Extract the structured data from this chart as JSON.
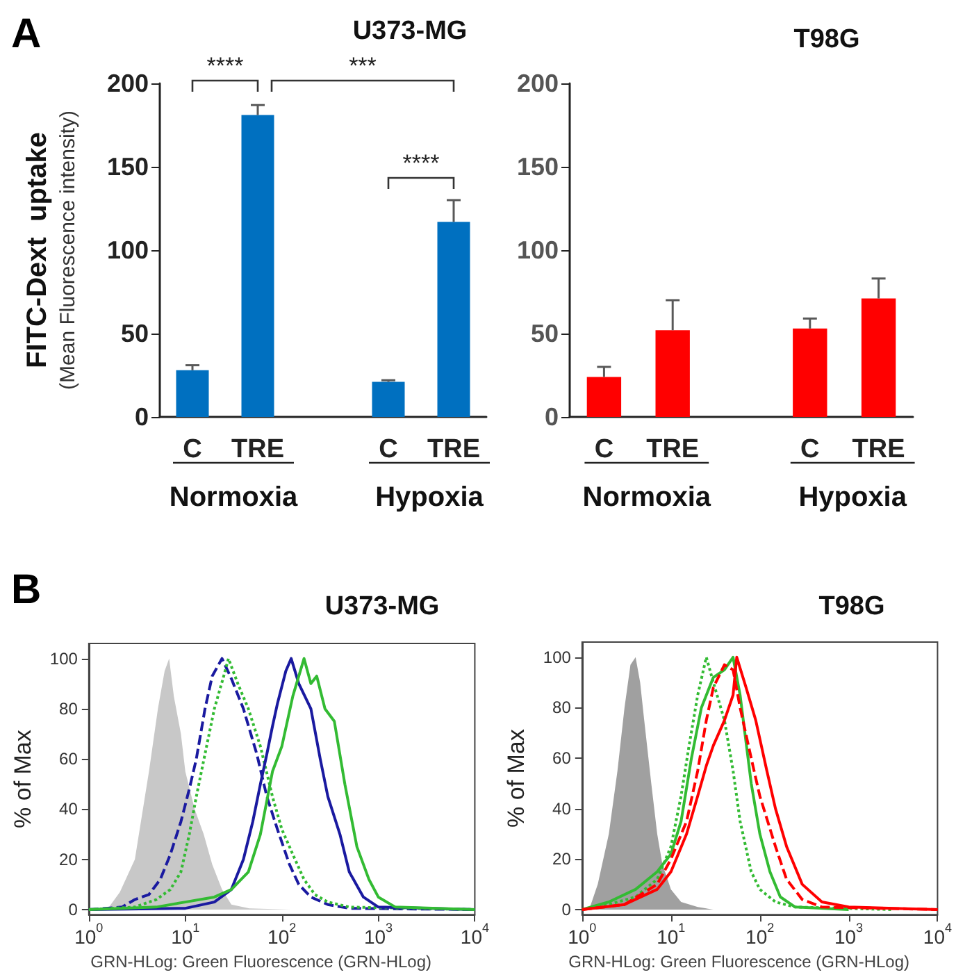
{
  "chart_data": [
    {
      "type": "bar",
      "title": "U373-MG",
      "ylabel": "FITC-Dext  uptake\n(Mean Fluorescence intensity)",
      "categories": [
        "C",
        "TRE",
        null,
        "C",
        "TRE"
      ],
      "values": [
        28,
        181,
        null,
        21,
        117
      ],
      "errors": [
        [
          28,
          31
        ],
        [
          181,
          187
        ],
        null,
        [
          21,
          22
        ],
        [
          117,
          130
        ]
      ],
      "color": "#0070c0",
      "ylim": [
        0,
        200
      ],
      "yticks": [
        0,
        50,
        100,
        150,
        200
      ],
      "annotations": [
        "A",
        "****",
        "***",
        "****",
        "Normoxia",
        "Hypoxia"
      ]
    },
    {
      "type": "bar",
      "title": "T98G",
      "categories": [
        "C",
        "TRE",
        null,
        "C",
        "TRE"
      ],
      "values": [
        24,
        52,
        null,
        53,
        71
      ],
      "errors": [
        [
          24,
          30
        ],
        [
          52,
          70
        ],
        null,
        [
          53,
          59
        ],
        [
          71,
          83
        ]
      ],
      "color": "#ff0000",
      "ylim": [
        0,
        200
      ],
      "yticks": [
        0,
        50,
        100,
        150,
        200
      ],
      "annotations": [
        "Normoxia",
        "Hypoxia"
      ]
    },
    {
      "type": "line",
      "title": "U373-MG",
      "xlabel": "GRN-HLog: Green Fluorescence (GRN-HLog)",
      "ylabel": "% of Max",
      "log": "x",
      "xlim": [
        1,
        10000
      ],
      "xticks": [
        {
          "value": 1,
          "label": "10$^{0}$"
        },
        {
          "value": 10,
          "label": "10$^{1}$"
        },
        {
          "value": 100,
          "label": "10$^{2}$"
        },
        {
          "value": 1000,
          "label": "10$^{3}$"
        },
        {
          "value": 10000,
          "label": "10$^{4}$"
        }
      ],
      "ylim": [
        -2,
        106
      ],
      "yticks": [
        0,
        20,
        40,
        60,
        80,
        100
      ],
      "marker": "none",
      "annotations": [
        "B"
      ],
      "series": [
        {
          "type": "area",
          "color": "#c8c8c8",
          "x": [
            1.55,
            2.1,
            3,
            4.2,
            5.2,
            6.1,
            6.8,
            7.6,
            9,
            10,
            12.5,
            15.5,
            19,
            24,
            30,
            46,
            125
          ],
          "values": [
            0,
            7,
            20,
            55,
            80,
            95,
            100,
            85,
            70,
            55,
            40,
            30,
            18,
            8,
            2,
            0.5,
            0
          ]
        },
        {
          "color": "#1a1aa0",
          "line_style": "dashed",
          "x": [
            1,
            2.2,
            3,
            4.2,
            5.5,
            7,
            9,
            11,
            13,
            16,
            19,
            24,
            30,
            40,
            55,
            70,
            90,
            120,
            150,
            200,
            300,
            500,
            10000
          ],
          "values": [
            0,
            1,
            4,
            6,
            12,
            22,
            35,
            48,
            60,
            80,
            93,
            100,
            92,
            80,
            62,
            45,
            32,
            18,
            10,
            5,
            2,
            0.5,
            0
          ]
        },
        {
          "color": "#33bb33",
          "line_style": "dotted",
          "x": [
            1,
            3,
            5,
            7,
            9,
            11,
            13,
            16,
            20,
            25,
            28,
            35,
            45,
            60,
            80,
            100,
            130,
            170,
            220,
            300,
            500,
            10000
          ],
          "values": [
            0,
            1,
            4,
            8,
            15,
            30,
            45,
            62,
            80,
            93,
            100,
            90,
            80,
            65,
            45,
            32,
            22,
            12,
            6,
            3,
            1,
            0
          ]
        },
        {
          "color": "#1a1aa0",
          "line_style": "solid",
          "x": [
            1,
            10,
            20,
            30,
            40,
            50,
            60,
            70,
            80,
            90,
            110,
            125,
            150,
            200,
            250,
            300,
            400,
            500,
            700,
            1000,
            10000
          ],
          "values": [
            0,
            0.5,
            3,
            8,
            20,
            35,
            50,
            62,
            73,
            82,
            95,
            100,
            90,
            80,
            60,
            45,
            30,
            15,
            5,
            1,
            0
          ]
        },
        {
          "color": "#33bb33",
          "line_style": "solid",
          "x": [
            1,
            5,
            10,
            20,
            30,
            45,
            60,
            80,
            100,
            130,
            170,
            200,
            230,
            280,
            350,
            450,
            600,
            800,
            1000,
            1500,
            10000
          ],
          "values": [
            0,
            1,
            3,
            5,
            8,
            15,
            30,
            55,
            65,
            85,
            100,
            90,
            93,
            80,
            75,
            50,
            25,
            12,
            5,
            1,
            0
          ]
        }
      ]
    },
    {
      "type": "line",
      "title": "T98G",
      "xlabel": "GRN-HLog: Green Fluorescence (GRN-HLog)",
      "ylabel": "% of Max",
      "log": "x",
      "xlim": [
        1,
        10000
      ],
      "xticks": [
        {
          "value": 1,
          "label": "10$^{0}$"
        },
        {
          "value": 10,
          "label": "10$^{1}$"
        },
        {
          "value": 100,
          "label": "10$^{2}$"
        },
        {
          "value": 1000,
          "label": "10$^{3}$"
        },
        {
          "value": 10000,
          "label": "10$^{4}$"
        }
      ],
      "ylim": [
        -2,
        106
      ],
      "yticks": [
        0,
        20,
        40,
        60,
        80,
        100
      ],
      "marker": "none",
      "series": [
        {
          "type": "area",
          "color": "#a0a0a0",
          "x": [
            1.2,
            1.5,
            2,
            2.5,
            3,
            3.5,
            4,
            4.5,
            5,
            6,
            7,
            8,
            10,
            13,
            20,
            30
          ],
          "values": [
            0,
            10,
            30,
            55,
            80,
            97,
            100,
            90,
            75,
            50,
            30,
            18,
            8,
            3,
            1,
            0
          ]
        },
        {
          "color": "#33bb33",
          "line_style": "dotted",
          "x": [
            1,
            2,
            4,
            7,
            10,
            13,
            16,
            20,
            25,
            30,
            40,
            50,
            60,
            80,
            100,
            150,
            250,
            3000
          ],
          "values": [
            0,
            2,
            5,
            12,
            25,
            45,
            65,
            85,
            100,
            90,
            75,
            55,
            35,
            15,
            8,
            3,
            1,
            0
          ]
        },
        {
          "color": "#33bb33",
          "line_style": "solid",
          "x": [
            1,
            2,
            4,
            7,
            10,
            13,
            17,
            22,
            30,
            40,
            50,
            60,
            80,
            100,
            130,
            170,
            250,
            1000
          ],
          "values": [
            0,
            3,
            8,
            15,
            22,
            35,
            60,
            80,
            92,
            95,
            100,
            85,
            50,
            30,
            15,
            5,
            1,
            0
          ]
        },
        {
          "color": "#ff0000",
          "line_style": "dashed",
          "x": [
            1,
            3,
            7,
            10,
            15,
            20,
            25,
            30,
            40,
            50,
            60,
            80,
            100,
            150,
            200,
            300,
            500,
            10000
          ],
          "values": [
            0,
            2,
            10,
            20,
            35,
            55,
            75,
            88,
            97,
            95,
            80,
            60,
            45,
            25,
            12,
            4,
            1,
            0
          ]
        },
        {
          "color": "#ff0000",
          "line_style": "solid",
          "x": [
            1,
            3,
            7,
            10,
            15,
            20,
            25,
            30,
            40,
            50,
            55,
            70,
            90,
            120,
            150,
            200,
            300,
            500,
            1000,
            10000
          ],
          "values": [
            0,
            2,
            8,
            15,
            30,
            45,
            57,
            65,
            75,
            85,
            100,
            88,
            75,
            55,
            40,
            25,
            10,
            3,
            1,
            0
          ]
        }
      ]
    }
  ]
}
